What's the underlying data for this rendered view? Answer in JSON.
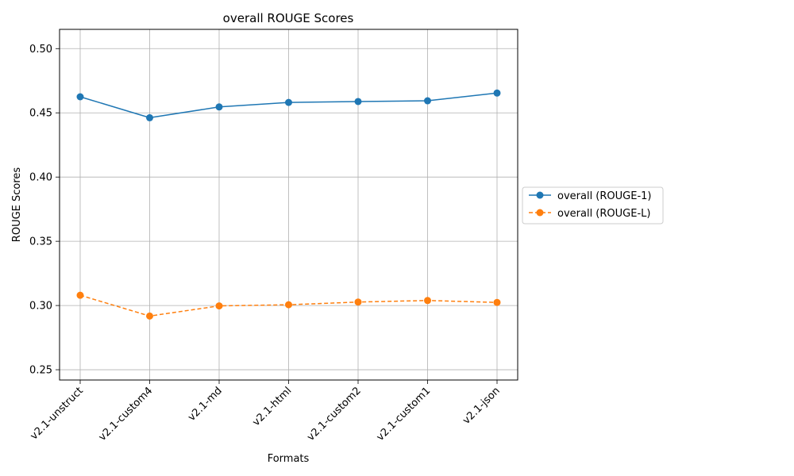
{
  "chart_data": {
    "type": "line",
    "title": "overall ROUGE Scores",
    "xlabel": "Formats",
    "ylabel": "ROUGE Scores",
    "categories": [
      "v2.1-unstruct",
      "v2.1-custom4",
      "v2.1-md",
      "v2.1-html",
      "v2.1-custom2",
      "v2.1-custom1",
      "v2.1-json"
    ],
    "ylim": [
      0.242,
      0.515
    ],
    "yticks": [
      0.25,
      0.3,
      0.35,
      0.4,
      0.45,
      0.5
    ],
    "ytick_labels": [
      "0.25",
      "0.30",
      "0.35",
      "0.40",
      "0.45",
      "0.50"
    ],
    "grid": true,
    "legend_position": "right-outside",
    "series": [
      {
        "name": "overall (ROUGE-1)",
        "values": [
          0.4625,
          0.4462,
          0.4546,
          0.4581,
          0.4588,
          0.4594,
          0.4654
        ],
        "color": "#1f77b4",
        "linestyle": "solid",
        "marker": "circle"
      },
      {
        "name": "overall (ROUGE-L)",
        "values": [
          0.308,
          0.2918,
          0.2997,
          0.3006,
          0.3027,
          0.3039,
          0.3024
        ],
        "color": "#ff7f0e",
        "linestyle": "dashed",
        "marker": "circle"
      }
    ]
  }
}
